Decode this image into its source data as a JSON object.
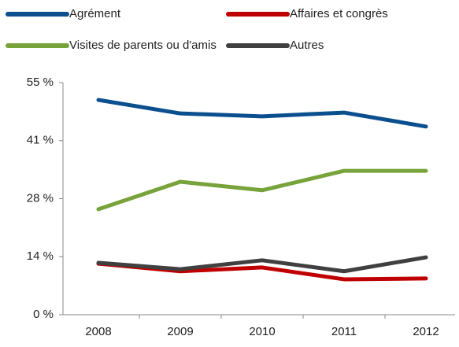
{
  "chart_data": {
    "type": "line",
    "categories": [
      "2008",
      "2009",
      "2010",
      "2011",
      "2012"
    ],
    "series": [
      {
        "name": "Agrément",
        "color": "#0b4f8f",
        "values": [
          50.9,
          47.7,
          47.0,
          47.9,
          44.6
        ]
      },
      {
        "name": "Affaires et congrès",
        "color": "#c00000",
        "values": [
          12.1,
          10.3,
          11.2,
          8.4,
          8.6
        ]
      },
      {
        "name": "Visites de parents ou d'amis",
        "color": "#77a33a",
        "values": [
          25.0,
          31.5,
          29.5,
          34.1,
          34.1
        ]
      },
      {
        "name": "Autres",
        "color": "#404040",
        "values": [
          12.3,
          10.8,
          12.9,
          10.3,
          13.6
        ]
      }
    ],
    "ylim": [
      0,
      55
    ],
    "yticks": [
      {
        "value": 0,
        "label": "0 %"
      },
      {
        "value": 13.75,
        "label": "14 %"
      },
      {
        "value": 27.5,
        "label": "28 %"
      },
      {
        "value": 41.25,
        "label": "41 %"
      },
      {
        "value": 55,
        "label": "55 %"
      }
    ]
  }
}
